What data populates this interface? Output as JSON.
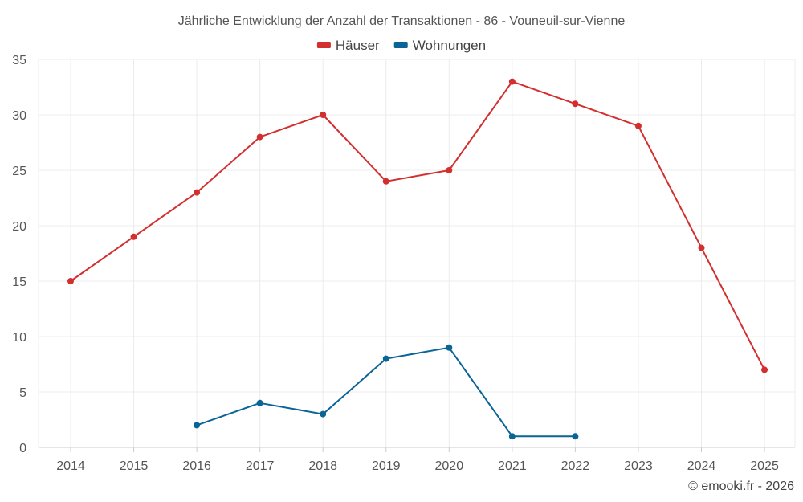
{
  "chart_data": {
    "type": "line",
    "title": "Jährliche Entwicklung der Anzahl der Transaktionen - 86 - Vouneuil-sur-Vienne",
    "xlabel": "",
    "ylabel": "",
    "categories": [
      "2014",
      "2015",
      "2016",
      "2017",
      "2018",
      "2019",
      "2020",
      "2021",
      "2022",
      "2023",
      "2024",
      "2025"
    ],
    "ylim": [
      0,
      35
    ],
    "yticks": [
      "0",
      "5",
      "10",
      "15",
      "20",
      "25",
      "30",
      "35"
    ],
    "grid": true,
    "legend_position": "top-center",
    "series": [
      {
        "name": "Häuser",
        "color": "#d32f2f",
        "values": [
          15,
          19,
          23,
          28,
          30,
          24,
          25,
          33,
          31,
          29,
          18,
          7
        ]
      },
      {
        "name": "Wohnungen",
        "color": "#0a6496",
        "values": [
          null,
          null,
          2,
          4,
          3,
          8,
          9,
          1,
          1,
          null,
          null,
          null
        ]
      }
    ]
  },
  "credit": "© emooki.fr - 2026"
}
